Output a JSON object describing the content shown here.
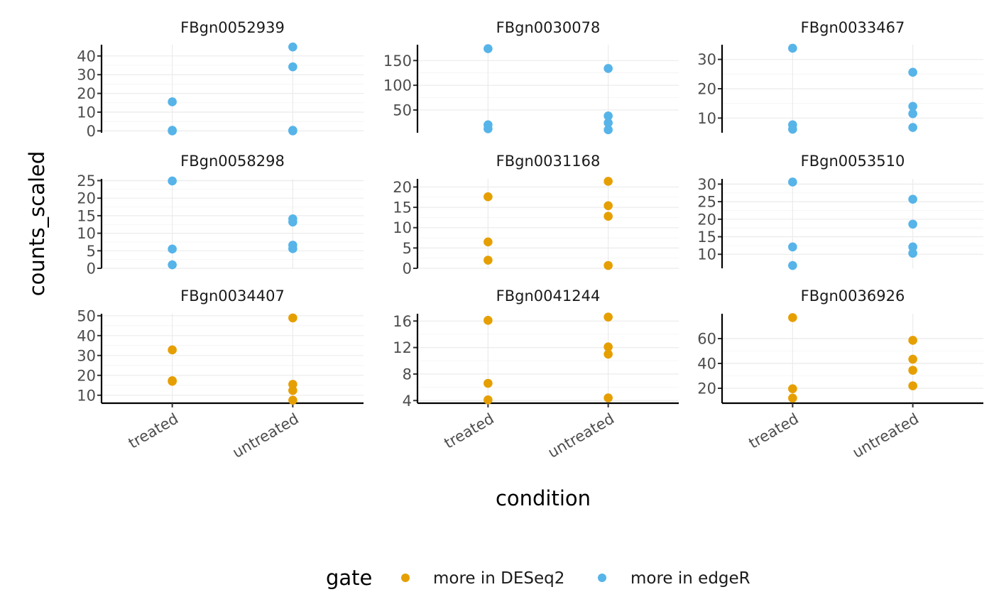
{
  "chart_data": {
    "type": "scatter",
    "facet_by": "gene",
    "xlabel": "condition",
    "ylabel": "counts_scaled",
    "categories": [
      "treated",
      "untreated"
    ],
    "legend": {
      "title": "gate",
      "position": "bottom",
      "entries": [
        {
          "label": "more in DESeq2",
          "color": "#E69F00"
        },
        {
          "label": "more in edgeR",
          "color": "#56B4E9"
        }
      ]
    },
    "panels": [
      {
        "title": "FBgn0052939",
        "gate": "more in edgeR",
        "ylim": [
          -1,
          46
        ],
        "yticks": [
          0,
          10,
          20,
          30,
          40
        ],
        "points": [
          {
            "x": "treated",
            "y": 15.5
          },
          {
            "x": "treated",
            "y": 0.3
          },
          {
            "x": "treated",
            "y": 0
          },
          {
            "x": "untreated",
            "y": 44.8
          },
          {
            "x": "untreated",
            "y": 34.2
          },
          {
            "x": "untreated",
            "y": 0.3
          },
          {
            "x": "untreated",
            "y": 0
          }
        ]
      },
      {
        "title": "FBgn0030078",
        "gate": "more in edgeR",
        "ylim": [
          4,
          182
        ],
        "yticks": [
          50,
          100,
          150
        ],
        "points": [
          {
            "x": "treated",
            "y": 174
          },
          {
            "x": "treated",
            "y": 20
          },
          {
            "x": "treated",
            "y": 12
          },
          {
            "x": "untreated",
            "y": 134
          },
          {
            "x": "untreated",
            "y": 38
          },
          {
            "x": "untreated",
            "y": 24
          },
          {
            "x": "untreated",
            "y": 10
          }
        ]
      },
      {
        "title": "FBgn0033467",
        "gate": "more in edgeR",
        "ylim": [
          5,
          35
        ],
        "yticks": [
          10,
          20,
          30
        ],
        "points": [
          {
            "x": "treated",
            "y": 33.8
          },
          {
            "x": "treated",
            "y": 7.7
          },
          {
            "x": "treated",
            "y": 6.2
          },
          {
            "x": "untreated",
            "y": 25.6
          },
          {
            "x": "untreated",
            "y": 14.0
          },
          {
            "x": "untreated",
            "y": 11.5
          },
          {
            "x": "untreated",
            "y": 6.8
          }
        ]
      },
      {
        "title": "FBgn0058298",
        "gate": "more in edgeR",
        "ylim": [
          0,
          25.5
        ],
        "yticks": [
          0,
          5,
          10,
          15,
          20,
          25
        ],
        "points": [
          {
            "x": "treated",
            "y": 24.9
          },
          {
            "x": "treated",
            "y": 5.5
          },
          {
            "x": "treated",
            "y": 1.0
          },
          {
            "x": "untreated",
            "y": 14.1
          },
          {
            "x": "untreated",
            "y": 13.2
          },
          {
            "x": "untreated",
            "y": 6.6
          },
          {
            "x": "untreated",
            "y": 5.6
          }
        ]
      },
      {
        "title": "FBgn0031168",
        "gate": "more in DESeq2",
        "ylim": [
          0,
          22
        ],
        "yticks": [
          0,
          5,
          10,
          15,
          20
        ],
        "points": [
          {
            "x": "treated",
            "y": 17.6
          },
          {
            "x": "treated",
            "y": 6.5
          },
          {
            "x": "treated",
            "y": 2.0
          },
          {
            "x": "untreated",
            "y": 21.4
          },
          {
            "x": "untreated",
            "y": 15.4
          },
          {
            "x": "untreated",
            "y": 12.8
          },
          {
            "x": "untreated",
            "y": 0.7
          }
        ]
      },
      {
        "title": "FBgn0053510",
        "gate": "more in edgeR",
        "ylim": [
          6,
          31.5
        ],
        "yticks": [
          10,
          15,
          20,
          25,
          30
        ],
        "points": [
          {
            "x": "treated",
            "y": 30.6
          },
          {
            "x": "treated",
            "y": 12.1
          },
          {
            "x": "treated",
            "y": 6.8
          },
          {
            "x": "untreated",
            "y": 25.7
          },
          {
            "x": "untreated",
            "y": 18.6
          },
          {
            "x": "untreated",
            "y": 12.1
          },
          {
            "x": "untreated",
            "y": 10.3
          }
        ]
      },
      {
        "title": "FBgn0034407",
        "gate": "more in DESeq2",
        "ylim": [
          6,
          51
        ],
        "yticks": [
          10,
          20,
          30,
          40,
          50
        ],
        "points": [
          {
            "x": "treated",
            "y": 32.8
          },
          {
            "x": "treated",
            "y": 17.3
          },
          {
            "x": "treated",
            "y": 17.0
          },
          {
            "x": "untreated",
            "y": 48.9
          },
          {
            "x": "untreated",
            "y": 15.5
          },
          {
            "x": "untreated",
            "y": 12.4
          },
          {
            "x": "untreated",
            "y": 7.5
          }
        ]
      },
      {
        "title": "FBgn0041244",
        "gate": "more in DESeq2",
        "ylim": [
          3.6,
          17.1
        ],
        "yticks": [
          4,
          8,
          12,
          16
        ],
        "points": [
          {
            "x": "treated",
            "y": 16.1
          },
          {
            "x": "treated",
            "y": 6.6
          },
          {
            "x": "treated",
            "y": 4.1
          },
          {
            "x": "untreated",
            "y": 16.6
          },
          {
            "x": "untreated",
            "y": 12.1
          },
          {
            "x": "untreated",
            "y": 11.0
          },
          {
            "x": "untreated",
            "y": 4.4
          }
        ]
      },
      {
        "title": "FBgn0036926",
        "gate": "more in DESeq2",
        "ylim": [
          8,
          80
        ],
        "yticks": [
          20,
          40,
          60
        ],
        "points": [
          {
            "x": "treated",
            "y": 76.9
          },
          {
            "x": "treated",
            "y": 19.6
          },
          {
            "x": "treated",
            "y": 12.1
          },
          {
            "x": "untreated",
            "y": 58.6
          },
          {
            "x": "untreated",
            "y": 43.4
          },
          {
            "x": "untreated",
            "y": 34.5
          },
          {
            "x": "untreated",
            "y": 22.0
          }
        ]
      }
    ]
  }
}
